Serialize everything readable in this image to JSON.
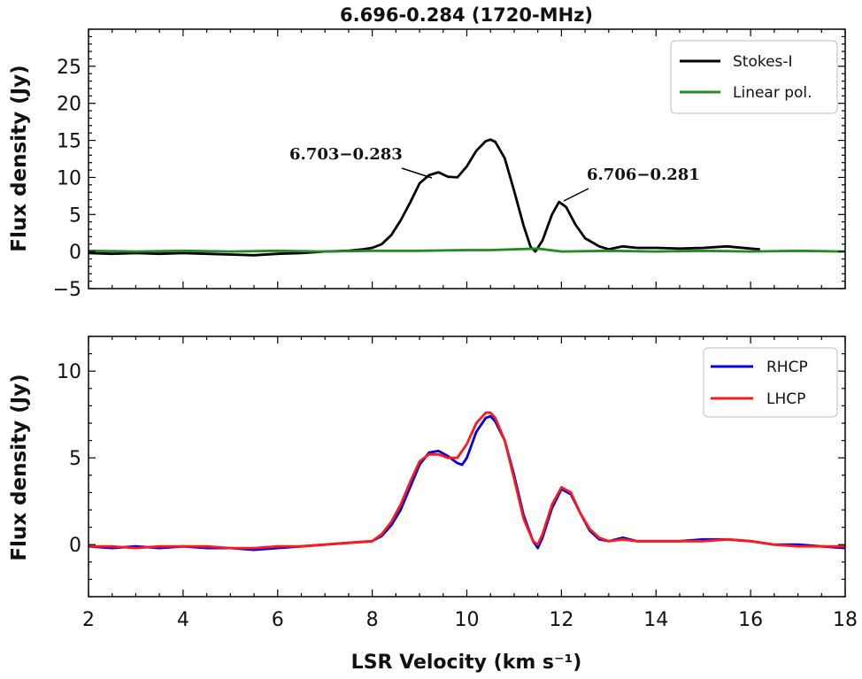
{
  "chart_data": [
    {
      "type": "line",
      "title": "6.696-0.284 (1720-MHz)",
      "ylabel": "Flux density (Jy)",
      "xlim": [
        2,
        18
      ],
      "ylim": [
        -5,
        30
      ],
      "yticks": [
        -5,
        0,
        5,
        10,
        15,
        20,
        25
      ],
      "ytick_labels": [
        "−5",
        "0",
        "5",
        "10",
        "15",
        "20",
        "25"
      ],
      "grid": false,
      "legend_position": "top-right",
      "series": [
        {
          "name": "Stokes-I",
          "color": "#000000",
          "x": [
            2.0,
            2.5,
            3.0,
            3.5,
            4.0,
            4.5,
            5.0,
            5.5,
            6.0,
            6.5,
            7.0,
            7.5,
            7.8,
            8.0,
            8.2,
            8.4,
            8.6,
            8.8,
            9.0,
            9.2,
            9.4,
            9.6,
            9.8,
            10.0,
            10.2,
            10.4,
            10.5,
            10.6,
            10.8,
            11.0,
            11.2,
            11.35,
            11.45,
            11.6,
            11.8,
            11.95,
            12.1,
            12.3,
            12.5,
            12.8,
            13.0,
            13.3,
            13.6,
            14.0,
            14.5,
            15.0,
            15.5,
            16.0,
            16.2
          ],
          "y": [
            -0.2,
            -0.3,
            -0.2,
            -0.3,
            -0.2,
            -0.3,
            -0.4,
            -0.5,
            -0.3,
            -0.2,
            0.0,
            0.1,
            0.3,
            0.5,
            1.0,
            2.2,
            4.2,
            6.6,
            9.2,
            10.3,
            10.7,
            10.1,
            10.0,
            11.5,
            13.6,
            14.9,
            15.1,
            14.8,
            12.6,
            8.2,
            3.5,
            0.6,
            0.0,
            1.5,
            5.0,
            6.7,
            6.0,
            3.6,
            1.8,
            0.7,
            0.3,
            0.7,
            0.5,
            0.5,
            0.4,
            0.5,
            0.7,
            0.4,
            0.3
          ]
        },
        {
          "name": "Linear pol.",
          "color": "#228b22",
          "x": [
            2.0,
            3.0,
            4.0,
            5.0,
            6.0,
            7.0,
            8.0,
            9.0,
            10.0,
            10.5,
            11.0,
            11.5,
            12.0,
            13.0,
            14.0,
            15.0,
            16.0,
            17.0,
            18.0
          ],
          "y": [
            0.1,
            0.0,
            0.1,
            0.0,
            0.1,
            0.0,
            0.1,
            0.1,
            0.2,
            0.2,
            0.3,
            0.4,
            0.0,
            0.1,
            0.0,
            0.1,
            0.0,
            0.1,
            0.0
          ]
        }
      ],
      "annotations": [
        {
          "text": "6.703−0.283",
          "x": 9.4,
          "y": 10.7
        },
        {
          "text": "6.706−0.281",
          "x": 11.95,
          "y": 6.7
        }
      ]
    },
    {
      "type": "line",
      "xlabel": "LSR Velocity (km s⁻¹)",
      "ylabel": "Flux density (Jy)",
      "xlim": [
        2,
        18
      ],
      "ylim": [
        -3,
        12
      ],
      "xticks": [
        2,
        4,
        6,
        8,
        10,
        12,
        14,
        16,
        18
      ],
      "yticks": [
        0,
        5,
        10
      ],
      "grid": false,
      "legend_position": "top-right",
      "series": [
        {
          "name": "RHCP",
          "color": "#0000dd",
          "x": [
            2.0,
            2.5,
            3.0,
            3.5,
            4.0,
            4.5,
            5.0,
            5.5,
            6.0,
            6.5,
            7.0,
            7.5,
            8.0,
            8.2,
            8.4,
            8.6,
            8.8,
            9.0,
            9.2,
            9.4,
            9.6,
            9.8,
            9.9,
            10.0,
            10.2,
            10.4,
            10.5,
            10.6,
            10.8,
            11.0,
            11.2,
            11.4,
            11.5,
            11.6,
            11.8,
            12.0,
            12.2,
            12.4,
            12.6,
            12.8,
            13.0,
            13.3,
            13.6,
            14.0,
            14.5,
            15.0,
            15.5,
            16.0,
            16.5,
            17.0,
            17.5,
            18.0
          ],
          "y": [
            -0.1,
            -0.2,
            -0.1,
            -0.2,
            -0.1,
            -0.2,
            -0.2,
            -0.3,
            -0.2,
            -0.1,
            0.0,
            0.1,
            0.2,
            0.5,
            1.1,
            2.0,
            3.3,
            4.6,
            5.3,
            5.4,
            5.1,
            4.7,
            4.6,
            5.0,
            6.5,
            7.3,
            7.4,
            7.1,
            6.0,
            4.0,
            1.7,
            0.2,
            -0.2,
            0.4,
            2.1,
            3.2,
            2.9,
            1.8,
            0.8,
            0.3,
            0.2,
            0.4,
            0.2,
            0.2,
            0.2,
            0.3,
            0.3,
            0.2,
            0.0,
            0.0,
            -0.1,
            -0.2
          ]
        },
        {
          "name": "LHCP",
          "color": "#ff1a1a",
          "x": [
            2.0,
            2.5,
            3.0,
            3.5,
            4.0,
            4.5,
            5.0,
            5.5,
            6.0,
            6.5,
            7.0,
            7.5,
            8.0,
            8.2,
            8.4,
            8.6,
            8.8,
            9.0,
            9.2,
            9.4,
            9.6,
            9.8,
            10.0,
            10.2,
            10.4,
            10.5,
            10.6,
            10.8,
            11.0,
            11.2,
            11.4,
            11.5,
            11.6,
            11.8,
            12.0,
            12.2,
            12.4,
            12.6,
            12.8,
            13.0,
            13.3,
            13.6,
            14.0,
            14.5,
            15.0,
            15.5,
            16.0,
            16.5,
            17.0,
            17.5,
            18.0
          ],
          "y": [
            -0.1,
            -0.1,
            -0.2,
            -0.1,
            -0.1,
            -0.1,
            -0.2,
            -0.2,
            -0.1,
            -0.1,
            0.0,
            0.1,
            0.2,
            0.6,
            1.3,
            2.3,
            3.6,
            4.8,
            5.2,
            5.2,
            5.0,
            5.0,
            5.8,
            7.0,
            7.6,
            7.6,
            7.3,
            6.0,
            3.8,
            1.5,
            0.2,
            0.0,
            0.6,
            2.3,
            3.3,
            3.0,
            1.8,
            0.9,
            0.4,
            0.2,
            0.3,
            0.2,
            0.2,
            0.2,
            0.2,
            0.3,
            0.2,
            0.0,
            -0.1,
            -0.1,
            -0.1
          ]
        }
      ]
    }
  ]
}
